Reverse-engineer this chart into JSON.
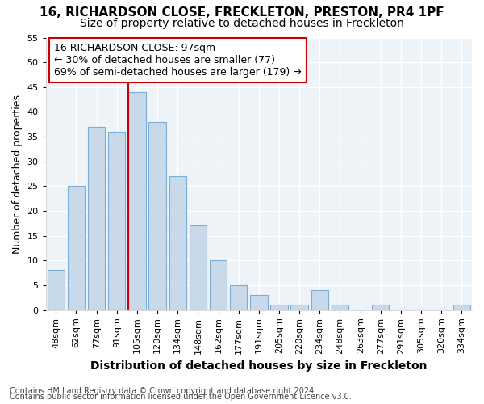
{
  "title1": "16, RICHARDSON CLOSE, FRECKLETON, PRESTON, PR4 1PF",
  "title2": "Size of property relative to detached houses in Freckleton",
  "xlabel": "Distribution of detached houses by size in Freckleton",
  "ylabel": "Number of detached properties",
  "categories": [
    "48sqm",
    "62sqm",
    "77sqm",
    "91sqm",
    "105sqm",
    "120sqm",
    "134sqm",
    "148sqm",
    "162sqm",
    "177sqm",
    "191sqm",
    "205sqm",
    "220sqm",
    "234sqm",
    "248sqm",
    "263sqm",
    "277sqm",
    "291sqm",
    "305sqm",
    "320sqm",
    "334sqm"
  ],
  "values": [
    8,
    25,
    37,
    36,
    44,
    38,
    27,
    17,
    10,
    5,
    3,
    1,
    1,
    4,
    1,
    0,
    1,
    0,
    0,
    0,
    1
  ],
  "bar_color": "#c8daea",
  "bar_edge_color": "#7aaed6",
  "vline_color": "#cc0000",
  "vline_position": 4,
  "annotation_text": "16 RICHARDSON CLOSE: 97sqm\n← 30% of detached houses are smaller (77)\n69% of semi-detached houses are larger (179) →",
  "annotation_box_facecolor": "#ffffff",
  "annotation_box_edgecolor": "#cc0000",
  "ylim": [
    0,
    55
  ],
  "yticks": [
    0,
    5,
    10,
    15,
    20,
    25,
    30,
    35,
    40,
    45,
    50,
    55
  ],
  "background_color": "#ffffff",
  "plot_bg_color": "#eef3f8",
  "grid_color": "#ffffff",
  "footnote1": "Contains HM Land Registry data © Crown copyright and database right 2024.",
  "footnote2": "Contains public sector information licensed under the Open Government Licence v3.0.",
  "title1_fontsize": 11,
  "title2_fontsize": 10,
  "xlabel_fontsize": 10,
  "ylabel_fontsize": 9,
  "tick_fontsize": 8,
  "annot_fontsize": 9,
  "footnote_fontsize": 7
}
